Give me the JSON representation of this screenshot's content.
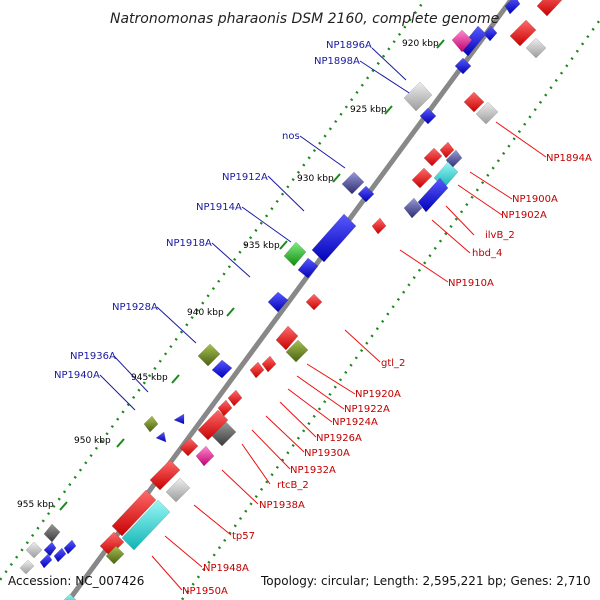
{
  "title": "Natronomonas pharaonis DSM 2160, complete genome",
  "accession": "Accession: NC_007426",
  "topology": "Topology: circular; Length: 2,595,221 bp; Genes: 2,710",
  "ticks": [
    "920 kbp",
    "925 kbp",
    "930 kbp",
    "935 kbp",
    "940 kbp",
    "945 kbp",
    "950 kbp",
    "955 kbp"
  ],
  "left_labels": [
    "NP1896A",
    "NP1898A",
    "nos",
    "NP1912A",
    "NP1914A",
    "NP1918A",
    "NP1928A",
    "NP1936A",
    "NP1940A"
  ],
  "right_labels": [
    "NP1894A",
    "NP1900A",
    "NP1902A",
    "ilvB_2",
    "hbd_4",
    "NP1910A",
    "gtl_2",
    "NP1920A",
    "NP1922A",
    "NP1924A",
    "NP1926A",
    "NP1930A",
    "NP1932A",
    "rtcB_2",
    "NP1938A",
    "tp57",
    "NP1948A",
    "NP1950A"
  ],
  "colors": {
    "backbone": "#8c8c8c",
    "forward_gene": "#1010e0",
    "reverse_gene": "#ee1111",
    "left_label": "#1a1aa0",
    "right_label": "#c00000",
    "tick_dots": "#1a8a1a",
    "grey_feature": "#c8c8c8",
    "cyan_feature": "#22d8d8",
    "olive_feature": "#6f8a22",
    "magenta_feature": "#ee2299",
    "green_feature": "#22bb22",
    "slate_feature": "#4a4a9a"
  }
}
